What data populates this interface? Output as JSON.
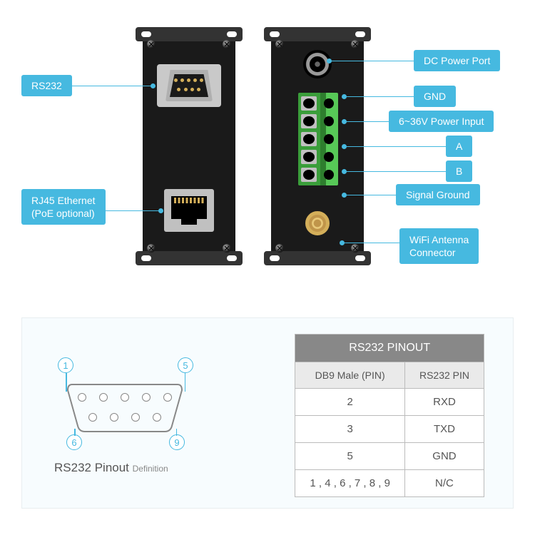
{
  "labels": {
    "rs232": "RS232",
    "rj45": "RJ45 Ethernet\n(PoE optional)",
    "dc": "DC Power Port",
    "gnd": "GND",
    "power_in": "6~36V Power Input",
    "a": "A",
    "b": "B",
    "sig_gnd": "Signal Ground",
    "wifi": "WiFi Antenna\nConnector"
  },
  "colors": {
    "accent": "#46b9e0",
    "device_body": "#1a1a1a",
    "terminal_green": "#3a9e3a",
    "gold": "#d4af5a",
    "table_header": "#888888",
    "panel_bg": "#f7fcfe"
  },
  "pinout": {
    "caption_main": "RS232 Pinout",
    "caption_sub": "Definition",
    "corners": {
      "tl": "1",
      "tr": "5",
      "bl": "6",
      "br": "9"
    },
    "table_title": "RS232 PINOUT",
    "col1": "DB9 Male (PIN)",
    "col2": "RS232 PIN",
    "rows": [
      {
        "pin": "2",
        "sig": "RXD"
      },
      {
        "pin": "3",
        "sig": "TXD"
      },
      {
        "pin": "5",
        "sig": "GND"
      },
      {
        "pin": "1 , 4 , 6 , 7 , 8 , 9",
        "sig": "N/C"
      }
    ]
  }
}
